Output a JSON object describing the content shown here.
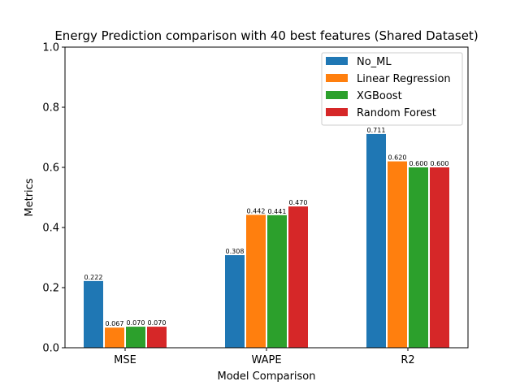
{
  "chart_data": {
    "type": "bar",
    "title": "Energy Prediction comparison with 40 best features (Shared Dataset)",
    "xlabel": "Model Comparison",
    "ylabel": "Metrics",
    "ylim": [
      0,
      1.0
    ],
    "yticks": [
      "0.0",
      "0.2",
      "0.4",
      "0.6",
      "0.8",
      "1.0"
    ],
    "yticks_values": [
      0.0,
      0.2,
      0.4,
      0.6,
      0.8,
      1.0
    ],
    "categories": [
      "MSE",
      "WAPE",
      "R2"
    ],
    "series": [
      {
        "name": "No_ML",
        "color": "#1f77b4",
        "values": [
          0.222,
          0.308,
          0.711
        ],
        "labels": [
          "0.222",
          "0.308",
          "0.711"
        ]
      },
      {
        "name": "Linear Regression",
        "color": "#ff7f0e",
        "values": [
          0.067,
          0.442,
          0.62
        ],
        "labels": [
          "0.067",
          "0.442",
          "0.620"
        ]
      },
      {
        "name": "XGBoost",
        "color": "#2ca02c",
        "values": [
          0.07,
          0.441,
          0.6
        ],
        "labels": [
          "0.070",
          "0.441",
          "0.600"
        ]
      },
      {
        "name": "Random Forest",
        "color": "#d62728",
        "values": [
          0.07,
          0.47,
          0.6
        ],
        "labels": [
          "0.070",
          "0.470",
          "0.600"
        ]
      }
    ],
    "legend_position": "top-right",
    "grid": false
  }
}
